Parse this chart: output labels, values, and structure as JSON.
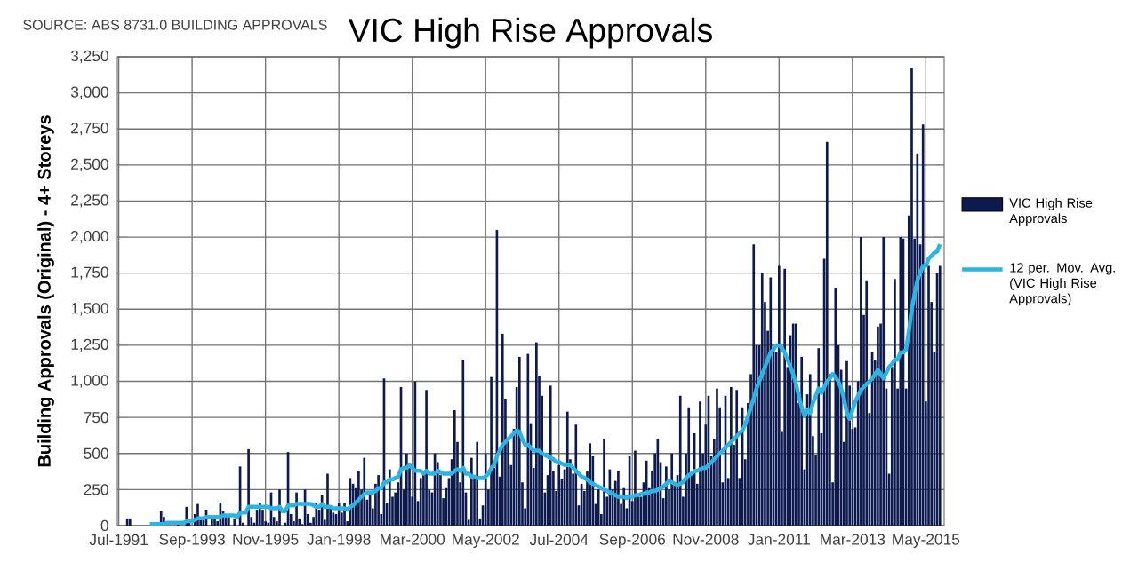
{
  "chart_data": {
    "type": "bar",
    "title": "VIC High Rise Approvals",
    "ylabel": "Building Approvals (Original) - 4+ Storeys",
    "annotations": [
      "SOURCE: ABS 8731.0 BUILDING APPROVALS"
    ],
    "categories": [
      "Jul-1991",
      null,
      null,
      null,
      null,
      null,
      null,
      null,
      null,
      null,
      null,
      null,
      null,
      null,
      null,
      null,
      null,
      null,
      null,
      null,
      null,
      null,
      null,
      null,
      null,
      null,
      "Sep-1993",
      null,
      null,
      null,
      null,
      null,
      null,
      null,
      null,
      null,
      null,
      null,
      null,
      null,
      null,
      null,
      null,
      null,
      null,
      null,
      null,
      null,
      null,
      null,
      null,
      null,
      "Nov-1995",
      null,
      null,
      null,
      null,
      null,
      null,
      null,
      null,
      null,
      null,
      null,
      null,
      null,
      null,
      null,
      null,
      null,
      null,
      null,
      null,
      null,
      null,
      null,
      null,
      null,
      "Jan-1998",
      null,
      null,
      null,
      null,
      null,
      null,
      null,
      null,
      null,
      null,
      null,
      null,
      null,
      null,
      null,
      null,
      null,
      null,
      null,
      null,
      null,
      null,
      null,
      null,
      null,
      "Mar-2000",
      null,
      null,
      null,
      null,
      null,
      null,
      null,
      null,
      null,
      null,
      null,
      null,
      null,
      null,
      null,
      null,
      null,
      null,
      null,
      null,
      null,
      null,
      null,
      null,
      null,
      "May-2002",
      null,
      null,
      null,
      null,
      null,
      null,
      null,
      null,
      null,
      null,
      null,
      null,
      null,
      null,
      null,
      null,
      null,
      null,
      null,
      null,
      null,
      null,
      null,
      null,
      null,
      "Jul-2004",
      null,
      null,
      null,
      null,
      null,
      null,
      null,
      null,
      null,
      null,
      null,
      null,
      null,
      null,
      null,
      null,
      null,
      null,
      null,
      null,
      null,
      null,
      null,
      null,
      null,
      "Sep-2006",
      null,
      null,
      null,
      null,
      null,
      null,
      null,
      null,
      null,
      null,
      null,
      null,
      null,
      null,
      null,
      null,
      null,
      null,
      null,
      null,
      null,
      null,
      null,
      null,
      null,
      "Nov-2008",
      null,
      null,
      null,
      null,
      null,
      null,
      null,
      null,
      null,
      null,
      null,
      null,
      null,
      null,
      null,
      null,
      null,
      null,
      null,
      null,
      null,
      null,
      null,
      null,
      null,
      "Jan-2011",
      null,
      null,
      null,
      null,
      null,
      null,
      null,
      null,
      null,
      null,
      null,
      null,
      null,
      null,
      null,
      null,
      null,
      null,
      null,
      null,
      null,
      null,
      null,
      null,
      null,
      "Mar-2013",
      null,
      null,
      null,
      null,
      null,
      null,
      null,
      null,
      null,
      null,
      null,
      null,
      null,
      null,
      null,
      null,
      null,
      null,
      null,
      null,
      null,
      null,
      null,
      null,
      null,
      "May-2015",
      null,
      null,
      null,
      null,
      null
    ],
    "ylim": [
      0,
      3250
    ],
    "yticks": [
      0,
      250,
      500,
      750,
      {
        "value": 1000,
        "label": "1,000"
      },
      {
        "value": 1250,
        "label": "1,250"
      },
      {
        "value": 1500,
        "label": "1,500"
      },
      {
        "value": 1750,
        "label": "1,750"
      },
      {
        "value": 2000,
        "label": "2,000"
      },
      {
        "value": 2250,
        "label": "2,250"
      },
      {
        "value": 2500,
        "label": "2,500"
      },
      {
        "value": 2750,
        "label": "2,750"
      },
      {
        "value": 3000,
        "label": "3,000"
      },
      {
        "value": 3250,
        "label": "3,250"
      }
    ],
    "grid": true,
    "legend": "right",
    "series": [
      {
        "name": "VIC High Rise Approvals",
        "color": "#0d1a4f",
        "values": [
          0,
          0,
          0,
          50,
          50,
          0,
          0,
          0,
          0,
          0,
          0,
          0,
          0,
          0,
          0,
          100,
          60,
          null,
          0,
          null,
          0,
          10,
          0,
          null,
          130,
          20,
          0,
          80,
          150,
          40,
          60,
          110,
          0,
          50,
          50,
          30,
          160,
          100,
          60,
          80,
          0,
          50,
          0,
          410,
          20,
          0,
          530,
          60,
          20,
          110,
          160,
          110,
          30,
          20,
          230,
          60,
          30,
          250,
          null,
          20,
          510,
          80,
          30,
          230,
          50,
          10,
          250,
          80,
          20,
          60,
          160,
          110,
          210,
          40,
          360,
          120,
          90,
          80,
          160,
          90,
          160,
          30,
          330,
          290,
          260,
          380,
          250,
          470,
          180,
          210,
          120,
          290,
          350,
          80,
          1020,
          160,
          390,
          200,
          230,
          300,
          960,
          250,
          500,
          400,
          200,
          1000,
          170,
          330,
          370,
          940,
          250,
          230,
          500,
          440,
          350,
          190,
          260,
          330,
          460,
          800,
          580,
          300,
          1150,
          230,
          40,
          470,
          330,
          580,
          50,
          140,
          500,
          250,
          1030,
          400,
          2050,
          340,
          1330,
          880,
          600,
          420,
          670,
          960,
          1170,
          300,
          120,
          1190,
          710,
          400,
          1270,
          1040,
          900,
          230,
          350,
          970,
          380,
          240,
          420,
          320,
          390,
          790,
          460,
          360,
          700,
          140,
          290,
          240,
          380,
          570,
          480,
          150,
          250,
          80,
          600,
          200,
          390,
          250,
          310,
          380,
          150,
          260,
          120,
          480,
          170,
          520,
          220,
          200,
          300,
          450,
          260,
          380,
          500,
          600,
          440,
          190,
          410,
          250,
          500,
          300,
          350,
          900,
          200,
          500,
          820,
          360,
          640,
          290,
          860,
          500,
          700,
          900,
          480,
          600,
          950,
          820,
          300,
          900,
          330,
          960,
          560,
          940,
          330,
          820,
          460,
          850,
          1050,
          1950,
          1250,
          1250,
          1750,
          1550,
          1350,
          1720,
          1250,
          1200,
          1800,
          650,
          1780,
          1100,
          1320,
          1400,
          1400,
          850,
          1170,
          390,
          910,
          1050,
          620,
          490,
          1230,
          640,
          1850,
          2660,
          1050,
          300,
          1650,
          1250,
          1080,
          580,
          1140,
          970,
          670,
          680,
          1000,
          2000,
          1460,
          1700,
          780,
          1200,
          1150,
          1380,
          1400,
          2000,
          950,
          360,
          1100,
          1710,
          950,
          2000,
          1990,
          950,
          2150,
          3170,
          1990,
          2580,
          1950,
          2780,
          860,
          1800,
          1550,
          1200,
          1750,
          1800
        ]
      },
      {
        "name": "12 per. Mov. Avg. (VIC High Rise Approvals)",
        "type": "line",
        "color": "#2bb5e5",
        "values": [
          null,
          null,
          null,
          null,
          null,
          null,
          null,
          null,
          null,
          null,
          null,
          10,
          10,
          10,
          10,
          10,
          10,
          20,
          20,
          20,
          20,
          20,
          20,
          20,
          30,
          30,
          30,
          40,
          50,
          50,
          50,
          60,
          60,
          60,
          60,
          60,
          60,
          70,
          70,
          70,
          70,
          70,
          60,
          90,
          90,
          90,
          130,
          130,
          130,
          130,
          130,
          130,
          130,
          130,
          120,
          120,
          120,
          130,
          100,
          100,
          140,
          140,
          140,
          150,
          150,
          150,
          150,
          150,
          150,
          140,
          130,
          130,
          150,
          130,
          130,
          130,
          120,
          120,
          120,
          120,
          120,
          110,
          130,
          140,
          160,
          180,
          200,
          220,
          230,
          230,
          230,
          240,
          260,
          260,
          300,
          300,
          320,
          320,
          330,
          340,
          390,
          400,
          400,
          420,
          400,
          380,
          380,
          380,
          360,
          380,
          360,
          360,
          360,
          380,
          370,
          360,
          360,
          360,
          360,
          380,
          390,
          380,
          400,
          360,
          360,
          340,
          340,
          330,
          330,
          330,
          340,
          360,
          400,
          420,
          480,
          520,
          560,
          580,
          600,
          620,
          640,
          660,
          650,
          600,
          560,
          560,
          540,
          520,
          520,
          520,
          500,
          490,
          480,
          470,
          460,
          440,
          440,
          430,
          420,
          420,
          420,
          400,
          380,
          360,
          340,
          330,
          320,
          300,
          290,
          280,
          270,
          260,
          250,
          240,
          230,
          220,
          210,
          200,
          200,
          200,
          190,
          200,
          200,
          210,
          210,
          220,
          220,
          230,
          230,
          240,
          240,
          250,
          260,
          270,
          290,
          310,
          300,
          290,
          280,
          290,
          300,
          330,
          350,
          360,
          380,
          380,
          390,
          400,
          400,
          420,
          440,
          460,
          480,
          500,
          520,
          540,
          560,
          580,
          600,
          620,
          640,
          660,
          700,
          760,
          820,
          880,
          950,
          1000,
          1050,
          1100,
          1150,
          1200,
          1220,
          1250,
          1250,
          1230,
          1200,
          1150,
          1100,
          1050,
          980,
          900,
          820,
          760,
          800,
          780,
          850,
          900,
          950,
          920,
          960,
          1000,
          1020,
          1050,
          1030,
          1000,
          950,
          880,
          780,
          740,
          800,
          860,
          900,
          940,
          960,
          980,
          1000,
          1020,
          1050,
          1080,
          1050,
          1020,
          1060,
          1100,
          1120,
          1150,
          1150,
          1200,
          1200,
          1220,
          1350,
          1500,
          1600,
          1700,
          1750,
          1800,
          1800,
          1850,
          1870,
          1890,
          1900,
          1950
        ]
      }
    ]
  }
}
